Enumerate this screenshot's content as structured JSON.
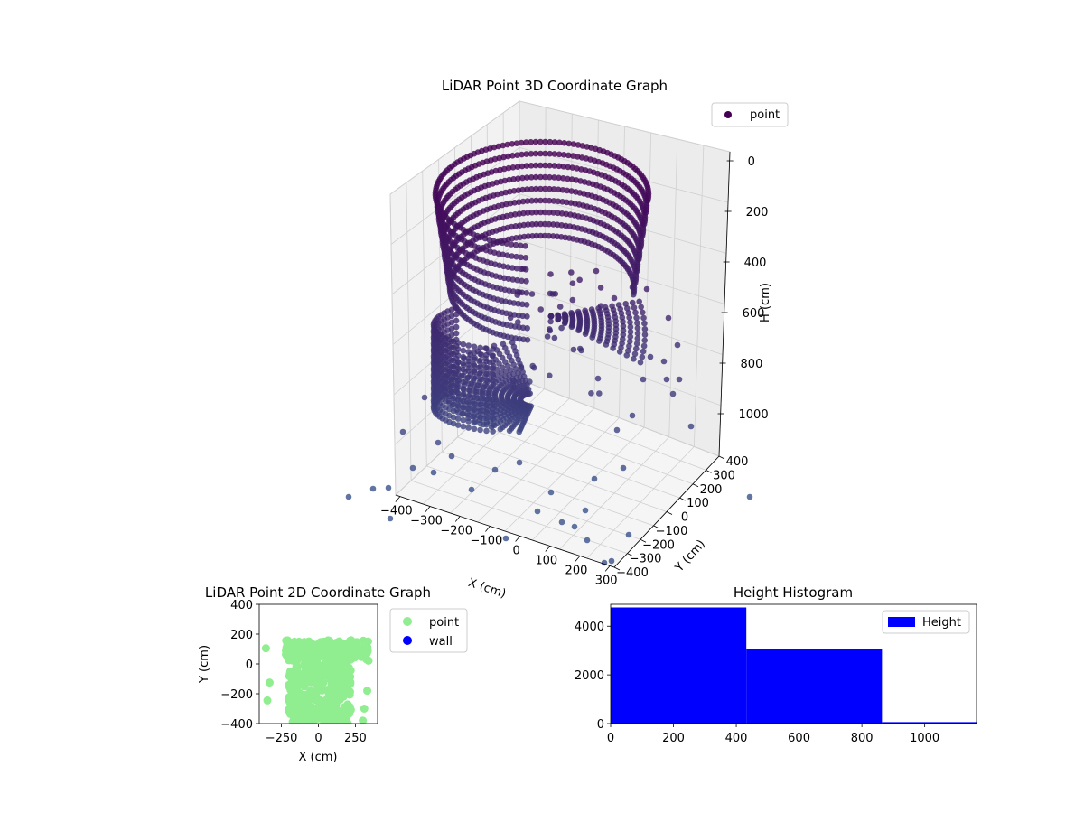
{
  "chart_data": [
    {
      "type": "scatter",
      "projection": "3d",
      "title": "LiDAR Point 3D Coordinate Graph",
      "xlabel": "X (cm)",
      "ylabel": "Y (cm)",
      "zlabel": "H (cm)",
      "x_ticks": [
        "−400",
        "−300",
        "−200",
        "−100",
        "0",
        "100",
        "200",
        "300"
      ],
      "y_ticks": [
        "−400",
        "−300",
        "−200",
        "−100",
        "0",
        "100",
        "200",
        "300",
        "400"
      ],
      "z_ticks": [
        "0",
        "200",
        "400",
        "600",
        "800",
        "1000"
      ],
      "xlim": [
        -400,
        400
      ],
      "ylim": [
        -400,
        400
      ],
      "zlim": [
        0,
        1150
      ],
      "z_inverted": true,
      "legend": {
        "position": "top-right",
        "entries": [
          "point"
        ]
      },
      "series": [
        {
          "name": "point",
          "color_top": "#440154",
          "color_bottom": "#3b528b"
        }
      ],
      "grid": true
    },
    {
      "type": "scatter",
      "title": "LiDAR Point 2D Coordinate Graph",
      "xlabel": "X (cm)",
      "ylabel": "Y (cm)",
      "x_ticks": [
        "−250",
        "0",
        "250"
      ],
      "y_ticks": [
        "400",
        "200",
        "0",
        "−200",
        "−400"
      ],
      "xlim": [
        -400,
        400
      ],
      "ylim": [
        -400,
        400
      ],
      "legend": {
        "position": "outside-right",
        "entries": [
          "point",
          "wall"
        ]
      },
      "series": [
        {
          "name": "point",
          "color": "#90ee90"
        },
        {
          "name": "wall",
          "color": "#0000ff"
        }
      ]
    },
    {
      "type": "bar",
      "title": "Height Histogram",
      "x_ticks": [
        "0",
        "200",
        "400",
        "600",
        "800",
        "1000"
      ],
      "y_ticks": [
        "0",
        "2000",
        "4000"
      ],
      "xlim": [
        0,
        1165
      ],
      "ylim": [
        0,
        4900
      ],
      "bins": [
        {
          "start": 0,
          "end": 432,
          "count": 4770
        },
        {
          "start": 432,
          "end": 864,
          "count": 3050
        },
        {
          "start": 864,
          "end": 1165,
          "count": 60
        }
      ],
      "legend": {
        "position": "top-right",
        "entries": [
          "Height"
        ]
      },
      "series": [
        {
          "name": "Height",
          "color": "#0000ff"
        }
      ]
    }
  ]
}
